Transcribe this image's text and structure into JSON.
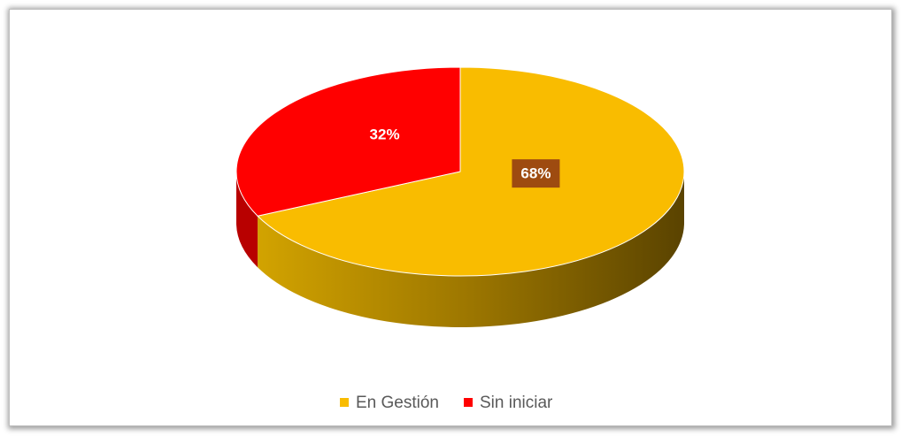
{
  "chart_data": {
    "type": "pie",
    "categories": [
      "En Gestión",
      "Sin iniciar"
    ],
    "values": [
      68,
      32
    ],
    "value_labels": [
      "68%",
      "32%"
    ],
    "colors": [
      "#f9bc00",
      "#ff0000"
    ],
    "legend": "bottom"
  }
}
